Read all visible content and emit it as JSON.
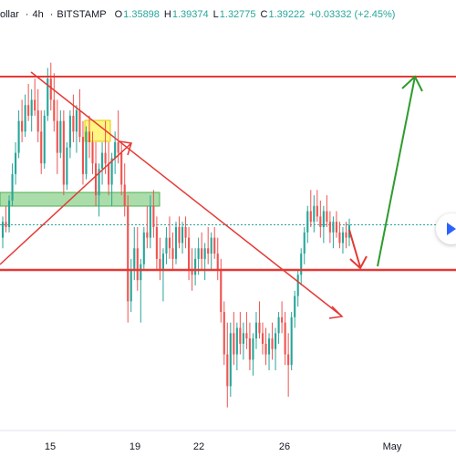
{
  "header": {
    "symbol": "ollar",
    "interval": "4h",
    "exchange": "BITSTAMP",
    "open_label": "O",
    "open": "1.35898",
    "high_label": "H",
    "high": "1.39374",
    "low_label": "L",
    "low": "1.32775",
    "close_label": "C",
    "close": "1.39222",
    "change": "+0.03332 (+2.45%)"
  },
  "colors": {
    "up": "#26a69a",
    "down": "#ef5350",
    "line": "#e53935",
    "arrow_up": "#2e9b2e",
    "zone_green": "#8fd18f",
    "zone_yellow": "#fff36b",
    "last_price": "#26a69a",
    "replay": "#2962ff"
  },
  "chart_data": {
    "type": "candlestick",
    "x_ticks": [
      "15",
      "19",
      "22",
      "26",
      "May"
    ],
    "y_range": [
      1.2,
      1.58
    ],
    "last_price": 1.3922,
    "candles": [
      [
        1.38,
        1.4,
        1.37,
        1.395
      ],
      [
        1.395,
        1.41,
        1.385,
        1.39
      ],
      [
        1.39,
        1.42,
        1.385,
        1.415
      ],
      [
        1.415,
        1.45,
        1.41,
        1.44
      ],
      [
        1.44,
        1.47,
        1.43,
        1.46
      ],
      [
        1.46,
        1.5,
        1.455,
        1.49
      ],
      [
        1.49,
        1.51,
        1.47,
        1.48
      ],
      [
        1.48,
        1.515,
        1.475,
        1.505
      ],
      [
        1.505,
        1.525,
        1.49,
        1.495
      ],
      [
        1.495,
        1.52,
        1.48,
        1.51
      ],
      [
        1.51,
        1.53,
        1.495,
        1.5
      ],
      [
        1.5,
        1.52,
        1.47,
        1.48
      ],
      [
        1.48,
        1.5,
        1.44,
        1.45
      ],
      [
        1.45,
        1.5,
        1.445,
        1.495
      ],
      [
        1.495,
        1.54,
        1.49,
        1.53
      ],
      [
        1.53,
        1.545,
        1.5,
        1.51
      ],
      [
        1.51,
        1.535,
        1.48,
        1.49
      ],
      [
        1.49,
        1.51,
        1.44,
        1.46
      ],
      [
        1.46,
        1.5,
        1.455,
        1.49
      ],
      [
        1.49,
        1.5,
        1.42,
        1.43
      ],
      [
        1.43,
        1.47,
        1.425,
        1.465
      ],
      [
        1.465,
        1.5,
        1.455,
        1.495
      ],
      [
        1.495,
        1.515,
        1.47,
        1.48
      ],
      [
        1.48,
        1.505,
        1.46,
        1.5
      ],
      [
        1.5,
        1.52,
        1.47,
        1.475
      ],
      [
        1.475,
        1.49,
        1.43,
        1.44
      ],
      [
        1.44,
        1.485,
        1.435,
        1.48
      ],
      [
        1.48,
        1.495,
        1.455,
        1.47
      ],
      [
        1.47,
        1.48,
        1.44,
        1.45
      ],
      [
        1.45,
        1.47,
        1.41,
        1.42
      ],
      [
        1.42,
        1.45,
        1.4,
        1.445
      ],
      [
        1.445,
        1.47,
        1.43,
        1.46
      ],
      [
        1.46,
        1.49,
        1.44,
        1.45
      ],
      [
        1.45,
        1.47,
        1.42,
        1.43
      ],
      [
        1.43,
        1.46,
        1.41,
        1.455
      ],
      [
        1.455,
        1.48,
        1.44,
        1.47
      ],
      [
        1.47,
        1.5,
        1.45,
        1.46
      ],
      [
        1.46,
        1.47,
        1.42,
        1.43
      ],
      [
        1.43,
        1.45,
        1.4,
        1.41
      ],
      [
        1.41,
        1.42,
        1.3,
        1.32
      ],
      [
        1.32,
        1.36,
        1.31,
        1.35
      ],
      [
        1.35,
        1.39,
        1.34,
        1.37
      ],
      [
        1.37,
        1.39,
        1.33,
        1.34
      ],
      [
        1.34,
        1.36,
        1.3,
        1.355
      ],
      [
        1.355,
        1.39,
        1.35,
        1.385
      ],
      [
        1.385,
        1.41,
        1.37,
        1.38
      ],
      [
        1.38,
        1.42,
        1.37,
        1.41
      ],
      [
        1.41,
        1.425,
        1.38,
        1.39
      ],
      [
        1.39,
        1.4,
        1.35,
        1.36
      ],
      [
        1.36,
        1.38,
        1.34,
        1.35
      ],
      [
        1.35,
        1.37,
        1.32,
        1.365
      ],
      [
        1.365,
        1.39,
        1.355,
        1.38
      ],
      [
        1.38,
        1.4,
        1.36,
        1.37
      ],
      [
        1.37,
        1.385,
        1.35,
        1.36
      ],
      [
        1.36,
        1.395,
        1.355,
        1.39
      ],
      [
        1.39,
        1.4,
        1.37,
        1.375
      ],
      [
        1.375,
        1.395,
        1.365,
        1.39
      ],
      [
        1.39,
        1.4,
        1.37,
        1.38
      ],
      [
        1.38,
        1.39,
        1.34,
        1.35
      ],
      [
        1.35,
        1.37,
        1.33,
        1.345
      ],
      [
        1.345,
        1.37,
        1.335,
        1.36
      ],
      [
        1.36,
        1.38,
        1.345,
        1.37
      ],
      [
        1.37,
        1.385,
        1.35,
        1.36
      ],
      [
        1.36,
        1.375,
        1.34,
        1.37
      ],
      [
        1.37,
        1.39,
        1.355,
        1.365
      ],
      [
        1.365,
        1.385,
        1.35,
        1.38
      ],
      [
        1.38,
        1.39,
        1.36,
        1.365
      ],
      [
        1.365,
        1.38,
        1.34,
        1.35
      ],
      [
        1.35,
        1.36,
        1.3,
        1.31
      ],
      [
        1.31,
        1.32,
        1.26,
        1.27
      ],
      [
        1.27,
        1.3,
        1.22,
        1.24
      ],
      [
        1.24,
        1.3,
        1.23,
        1.29
      ],
      [
        1.29,
        1.31,
        1.26,
        1.27
      ],
      [
        1.27,
        1.3,
        1.255,
        1.295
      ],
      [
        1.295,
        1.31,
        1.27,
        1.28
      ],
      [
        1.28,
        1.3,
        1.265,
        1.29
      ],
      [
        1.29,
        1.31,
        1.275,
        1.285
      ],
      [
        1.285,
        1.3,
        1.255,
        1.265
      ],
      [
        1.265,
        1.29,
        1.25,
        1.285
      ],
      [
        1.285,
        1.31,
        1.275,
        1.3
      ],
      [
        1.3,
        1.32,
        1.285,
        1.29
      ],
      [
        1.29,
        1.3,
        1.27,
        1.28
      ],
      [
        1.28,
        1.295,
        1.26,
        1.27
      ],
      [
        1.27,
        1.29,
        1.255,
        1.285
      ],
      [
        1.285,
        1.3,
        1.265,
        1.275
      ],
      [
        1.275,
        1.295,
        1.255,
        1.29
      ],
      [
        1.29,
        1.31,
        1.28,
        1.305
      ],
      [
        1.305,
        1.32,
        1.29,
        1.3
      ],
      [
        1.3,
        1.31,
        1.26,
        1.27
      ],
      [
        1.27,
        1.29,
        1.23,
        1.26
      ],
      [
        1.26,
        1.31,
        1.255,
        1.305
      ],
      [
        1.305,
        1.33,
        1.295,
        1.325
      ],
      [
        1.325,
        1.35,
        1.315,
        1.345
      ],
      [
        1.345,
        1.37,
        1.335,
        1.365
      ],
      [
        1.365,
        1.39,
        1.355,
        1.385
      ],
      [
        1.385,
        1.41,
        1.375,
        1.405
      ],
      [
        1.405,
        1.425,
        1.39,
        1.395
      ],
      [
        1.395,
        1.42,
        1.385,
        1.41
      ],
      [
        1.41,
        1.425,
        1.395,
        1.4
      ],
      [
        1.4,
        1.415,
        1.38,
        1.39
      ],
      [
        1.39,
        1.41,
        1.375,
        1.405
      ],
      [
        1.405,
        1.42,
        1.39,
        1.395
      ],
      [
        1.395,
        1.405,
        1.375,
        1.385
      ],
      [
        1.385,
        1.4,
        1.37,
        1.395
      ],
      [
        1.395,
        1.405,
        1.38,
        1.385
      ],
      [
        1.385,
        1.395,
        1.37,
        1.375
      ],
      [
        1.375,
        1.39,
        1.365,
        1.385
      ],
      [
        1.385,
        1.395,
        1.37,
        1.38
      ],
      [
        1.38,
        1.398,
        1.372,
        1.392
      ]
    ]
  }
}
